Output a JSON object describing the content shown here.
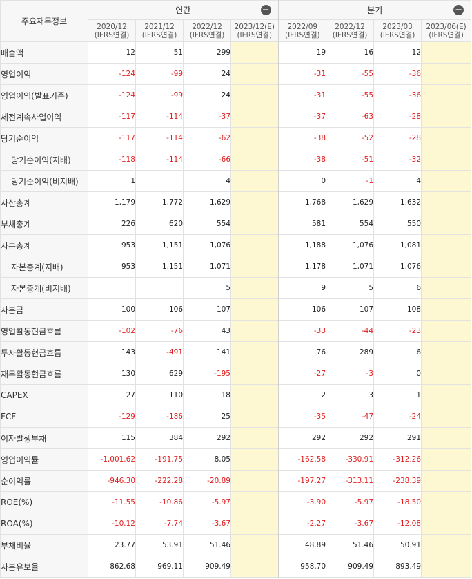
{
  "header": {
    "title": "주요재무정보",
    "annual_label": "연간",
    "quarter_label": "분기",
    "collapse_icon": "minus-circle-icon",
    "annual_columns": [
      {
        "period": "2020/12",
        "basis": "(IFRS연결)"
      },
      {
        "period": "2021/12",
        "basis": "(IFRS연결)"
      },
      {
        "period": "2022/12",
        "basis": "(IFRS연결)"
      },
      {
        "period": "2023/12(E)",
        "basis": "(IFRS연결)"
      }
    ],
    "quarter_columns": [
      {
        "period": "2022/09",
        "basis": "(IFRS연결)"
      },
      {
        "period": "2022/12",
        "basis": "(IFRS연결)"
      },
      {
        "period": "2023/03",
        "basis": "(IFRS연결)"
      },
      {
        "period": "2023/06(E)",
        "basis": "(IFRS연결)"
      }
    ]
  },
  "colors": {
    "negative": "#e02020",
    "estimate_bg": "#fdf8d2",
    "header_bg": "#f7f7f7"
  },
  "rows": [
    {
      "label": "매출액",
      "sub": false,
      "annual": [
        "12",
        "51",
        "299",
        ""
      ],
      "quarter": [
        "19",
        "16",
        "12",
        ""
      ]
    },
    {
      "label": "영업이익",
      "sub": false,
      "annual": [
        "-124",
        "-99",
        "24",
        ""
      ],
      "quarter": [
        "-31",
        "-55",
        "-36",
        ""
      ]
    },
    {
      "label": "영업이익(발표기준)",
      "sub": false,
      "annual": [
        "-124",
        "-99",
        "24",
        ""
      ],
      "quarter": [
        "-31",
        "-55",
        "-36",
        ""
      ]
    },
    {
      "label": "세전계속사업이익",
      "sub": false,
      "annual": [
        "-117",
        "-114",
        "-37",
        ""
      ],
      "quarter": [
        "-37",
        "-63",
        "-28",
        ""
      ]
    },
    {
      "label": "당기순이익",
      "sub": false,
      "annual": [
        "-117",
        "-114",
        "-62",
        ""
      ],
      "quarter": [
        "-38",
        "-52",
        "-28",
        ""
      ]
    },
    {
      "label": "당기순이익(지배)",
      "sub": true,
      "annual": [
        "-118",
        "-114",
        "-66",
        ""
      ],
      "quarter": [
        "-38",
        "-51",
        "-32",
        ""
      ]
    },
    {
      "label": "당기순이익(비지배)",
      "sub": true,
      "annual": [
        "1",
        "",
        "4",
        ""
      ],
      "quarter": [
        "0",
        "-1",
        "4",
        ""
      ]
    },
    {
      "label": "자산총계",
      "sub": false,
      "annual": [
        "1,179",
        "1,772",
        "1,629",
        ""
      ],
      "quarter": [
        "1,768",
        "1,629",
        "1,632",
        ""
      ]
    },
    {
      "label": "부채총계",
      "sub": false,
      "annual": [
        "226",
        "620",
        "554",
        ""
      ],
      "quarter": [
        "581",
        "554",
        "550",
        ""
      ]
    },
    {
      "label": "자본총계",
      "sub": false,
      "annual": [
        "953",
        "1,151",
        "1,076",
        ""
      ],
      "quarter": [
        "1,188",
        "1,076",
        "1,081",
        ""
      ]
    },
    {
      "label": "자본총계(지배)",
      "sub": true,
      "annual": [
        "953",
        "1,151",
        "1,071",
        ""
      ],
      "quarter": [
        "1,178",
        "1,071",
        "1,076",
        ""
      ]
    },
    {
      "label": "자본총계(비지배)",
      "sub": true,
      "annual": [
        "",
        "",
        "5",
        ""
      ],
      "quarter": [
        "9",
        "5",
        "6",
        ""
      ]
    },
    {
      "label": "자본금",
      "sub": false,
      "annual": [
        "100",
        "106",
        "107",
        ""
      ],
      "quarter": [
        "106",
        "107",
        "108",
        ""
      ]
    },
    {
      "label": "영업활동현금흐름",
      "sub": false,
      "annual": [
        "-102",
        "-76",
        "43",
        ""
      ],
      "quarter": [
        "-33",
        "-44",
        "-23",
        ""
      ]
    },
    {
      "label": "투자활동현금흐름",
      "sub": false,
      "annual": [
        "143",
        "-491",
        "141",
        ""
      ],
      "quarter": [
        "76",
        "289",
        "6",
        ""
      ]
    },
    {
      "label": "재무활동현금흐름",
      "sub": false,
      "annual": [
        "130",
        "629",
        "-195",
        ""
      ],
      "quarter": [
        "-27",
        "-3",
        "0",
        ""
      ]
    },
    {
      "label": "CAPEX",
      "sub": false,
      "annual": [
        "27",
        "110",
        "18",
        ""
      ],
      "quarter": [
        "2",
        "3",
        "1",
        ""
      ]
    },
    {
      "label": "FCF",
      "sub": false,
      "annual": [
        "-129",
        "-186",
        "25",
        ""
      ],
      "quarter": [
        "-35",
        "-47",
        "-24",
        ""
      ]
    },
    {
      "label": "이자발생부채",
      "sub": false,
      "annual": [
        "115",
        "384",
        "292",
        ""
      ],
      "quarter": [
        "292",
        "292",
        "291",
        ""
      ]
    },
    {
      "label": "영업이익률",
      "sub": false,
      "annual": [
        "-1,001.62",
        "-191.75",
        "8.05",
        ""
      ],
      "quarter": [
        "-162.58",
        "-330.91",
        "-312.26",
        ""
      ]
    },
    {
      "label": "순이익률",
      "sub": false,
      "annual": [
        "-946.30",
        "-222.28",
        "-20.89",
        ""
      ],
      "quarter": [
        "-197.27",
        "-313.11",
        "-238.39",
        ""
      ]
    },
    {
      "label": "ROE(%)",
      "sub": false,
      "annual": [
        "-11.55",
        "-10.86",
        "-5.97",
        ""
      ],
      "quarter": [
        "-3.90",
        "-5.97",
        "-18.50",
        ""
      ]
    },
    {
      "label": "ROA(%)",
      "sub": false,
      "annual": [
        "-10.12",
        "-7.74",
        "-3.67",
        ""
      ],
      "quarter": [
        "-2.27",
        "-3.67",
        "-12.08",
        ""
      ]
    },
    {
      "label": "부채비율",
      "sub": false,
      "annual": [
        "23.77",
        "53.91",
        "51.46",
        ""
      ],
      "quarter": [
        "48.89",
        "51.46",
        "50.91",
        ""
      ]
    },
    {
      "label": "자본유보율",
      "sub": false,
      "annual": [
        "862.68",
        "969.11",
        "909.49",
        ""
      ],
      "quarter": [
        "958.70",
        "909.49",
        "893.49",
        ""
      ]
    }
  ]
}
